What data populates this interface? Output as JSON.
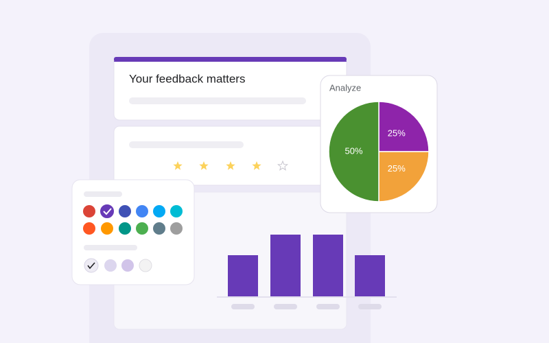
{
  "form": {
    "title": "Your feedback matters"
  },
  "analyze": {
    "title": "Analyze",
    "chart_data": {
      "type": "pie",
      "values": [
        25,
        25,
        50
      ],
      "value_labels": [
        "25%",
        "25%",
        "50%"
      ],
      "colors": [
        "#8e24aa",
        "#f2a23a",
        "#4a9130"
      ]
    }
  },
  "bars": {
    "chart_data": {
      "type": "bar",
      "values": [
        2,
        3,
        3,
        2
      ],
      "ylim": [
        0,
        3
      ],
      "color": "#673ab7"
    }
  }
}
